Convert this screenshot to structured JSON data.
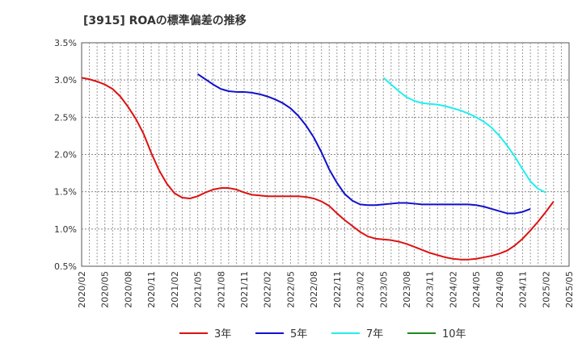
{
  "chart_data": {
    "type": "line",
    "title": "[3915]  ROAの標準偏差の推移",
    "xlabel": "",
    "ylabel": "",
    "ylim": [
      0.5,
      3.5
    ],
    "yticks": [
      "0.5%",
      "1.0%",
      "1.5%",
      "2.0%",
      "2.5%",
      "3.0%",
      "3.5%"
    ],
    "yvalues": [
      0.5,
      1.0,
      1.5,
      2.0,
      2.5,
      3.0,
      3.5
    ],
    "xticks": [
      "2020/02",
      "2020/05",
      "2020/08",
      "2020/11",
      "2021/02",
      "2021/05",
      "2021/08",
      "2021/11",
      "2022/02",
      "2022/05",
      "2022/08",
      "2022/11",
      "2023/02",
      "2023/05",
      "2023/08",
      "2023/11",
      "2024/02",
      "2024/05",
      "2024/08",
      "2024/11",
      "2025/02",
      "2025/05"
    ],
    "grid": true,
    "legend_position": "bottom",
    "series": [
      {
        "name": "3年",
        "color": "#dd1111",
        "start": "2020/02",
        "values": [
          3.03,
          3.01,
          2.98,
          2.94,
          2.88,
          2.78,
          2.64,
          2.48,
          2.28,
          2.02,
          1.79,
          1.61,
          1.48,
          1.42,
          1.41,
          1.44,
          1.49,
          1.53,
          1.55,
          1.55,
          1.53,
          1.49,
          1.46,
          1.45,
          1.44,
          1.44,
          1.44,
          1.44,
          1.44,
          1.43,
          1.41,
          1.37,
          1.31,
          1.21,
          1.12,
          1.04,
          0.96,
          0.9,
          0.87,
          0.86,
          0.85,
          0.83,
          0.8,
          0.76,
          0.72,
          0.68,
          0.65,
          0.62,
          0.6,
          0.59,
          0.59,
          0.6,
          0.62,
          0.64,
          0.67,
          0.71,
          0.78,
          0.87,
          0.98,
          1.1,
          1.23,
          1.37
        ]
      },
      {
        "name": "5年",
        "color": "#1111cc",
        "start": "2021/05",
        "values": [
          3.08,
          3.01,
          2.94,
          2.88,
          2.85,
          2.84,
          2.84,
          2.83,
          2.81,
          2.78,
          2.74,
          2.69,
          2.62,
          2.52,
          2.39,
          2.23,
          2.03,
          1.8,
          1.62,
          1.47,
          1.38,
          1.33,
          1.32,
          1.32,
          1.33,
          1.34,
          1.35,
          1.35,
          1.34,
          1.33,
          1.33,
          1.33,
          1.33,
          1.33,
          1.33,
          1.33,
          1.32,
          1.3,
          1.27,
          1.24,
          1.21,
          1.21,
          1.23,
          1.27
        ]
      },
      {
        "name": "7年",
        "color": "#22eeee",
        "start": "2023/05",
        "values": [
          3.03,
          2.94,
          2.85,
          2.77,
          2.72,
          2.69,
          2.68,
          2.67,
          2.65,
          2.62,
          2.59,
          2.55,
          2.5,
          2.44,
          2.36,
          2.25,
          2.12,
          1.97,
          1.8,
          1.64,
          1.54,
          1.49
        ]
      },
      {
        "name": "10年",
        "color": "#228822",
        "start": "2025/02",
        "values": []
      }
    ]
  }
}
